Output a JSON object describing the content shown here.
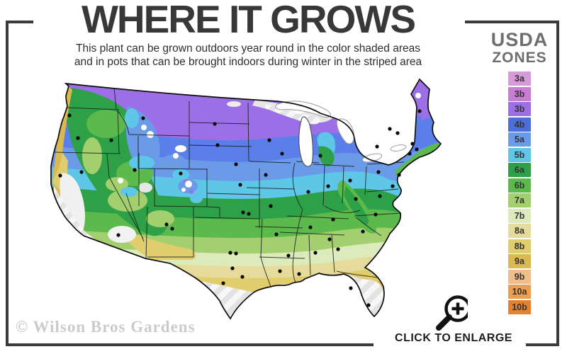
{
  "header": {
    "title": "WHERE IT GROWS",
    "subtitle_line1": "This plant can be grown outdoors year round in the color shaded areas",
    "subtitle_line2": "and in pots that can be brought indoors during winter in the striped area"
  },
  "legend": {
    "title_line1": "USDA",
    "title_line2": "ZONES",
    "zones": [
      {
        "label": "3a",
        "color": "#D79AD9"
      },
      {
        "label": "3b",
        "color": "#C87ED0"
      },
      {
        "label": "3b",
        "color": "#9C6FE6"
      },
      {
        "label": "4b",
        "color": "#4B6ED8"
      },
      {
        "label": "5a",
        "color": "#6B9BE8"
      },
      {
        "label": "5b",
        "color": "#5EC6E6"
      },
      {
        "label": "6a",
        "color": "#2EA148"
      },
      {
        "label": "6b",
        "color": "#5CB94C"
      },
      {
        "label": "7a",
        "color": "#A3CF6F"
      },
      {
        "label": "7b",
        "color": "#DCEBBC"
      },
      {
        "label": "8a",
        "color": "#E5DC9B"
      },
      {
        "label": "8b",
        "color": "#E0CE6E"
      },
      {
        "label": "9a",
        "color": "#DBB952"
      },
      {
        "label": "9b",
        "color": "#EFBE8A"
      },
      {
        "label": "10a",
        "color": "#EE9F4D"
      },
      {
        "label": "10b",
        "color": "#E2822F"
      }
    ]
  },
  "footer": {
    "watermark": "© Wilson Bros Gardens",
    "cta_label": "CLICK TO ENLARGE",
    "magnifier_icon": "magnifier-plus"
  },
  "accent_colors": {
    "frame": "#3a3a3a",
    "title_text": "#383838",
    "legend_title_text": "#6e6e6e",
    "watermark_text": "#cbcbcb"
  }
}
